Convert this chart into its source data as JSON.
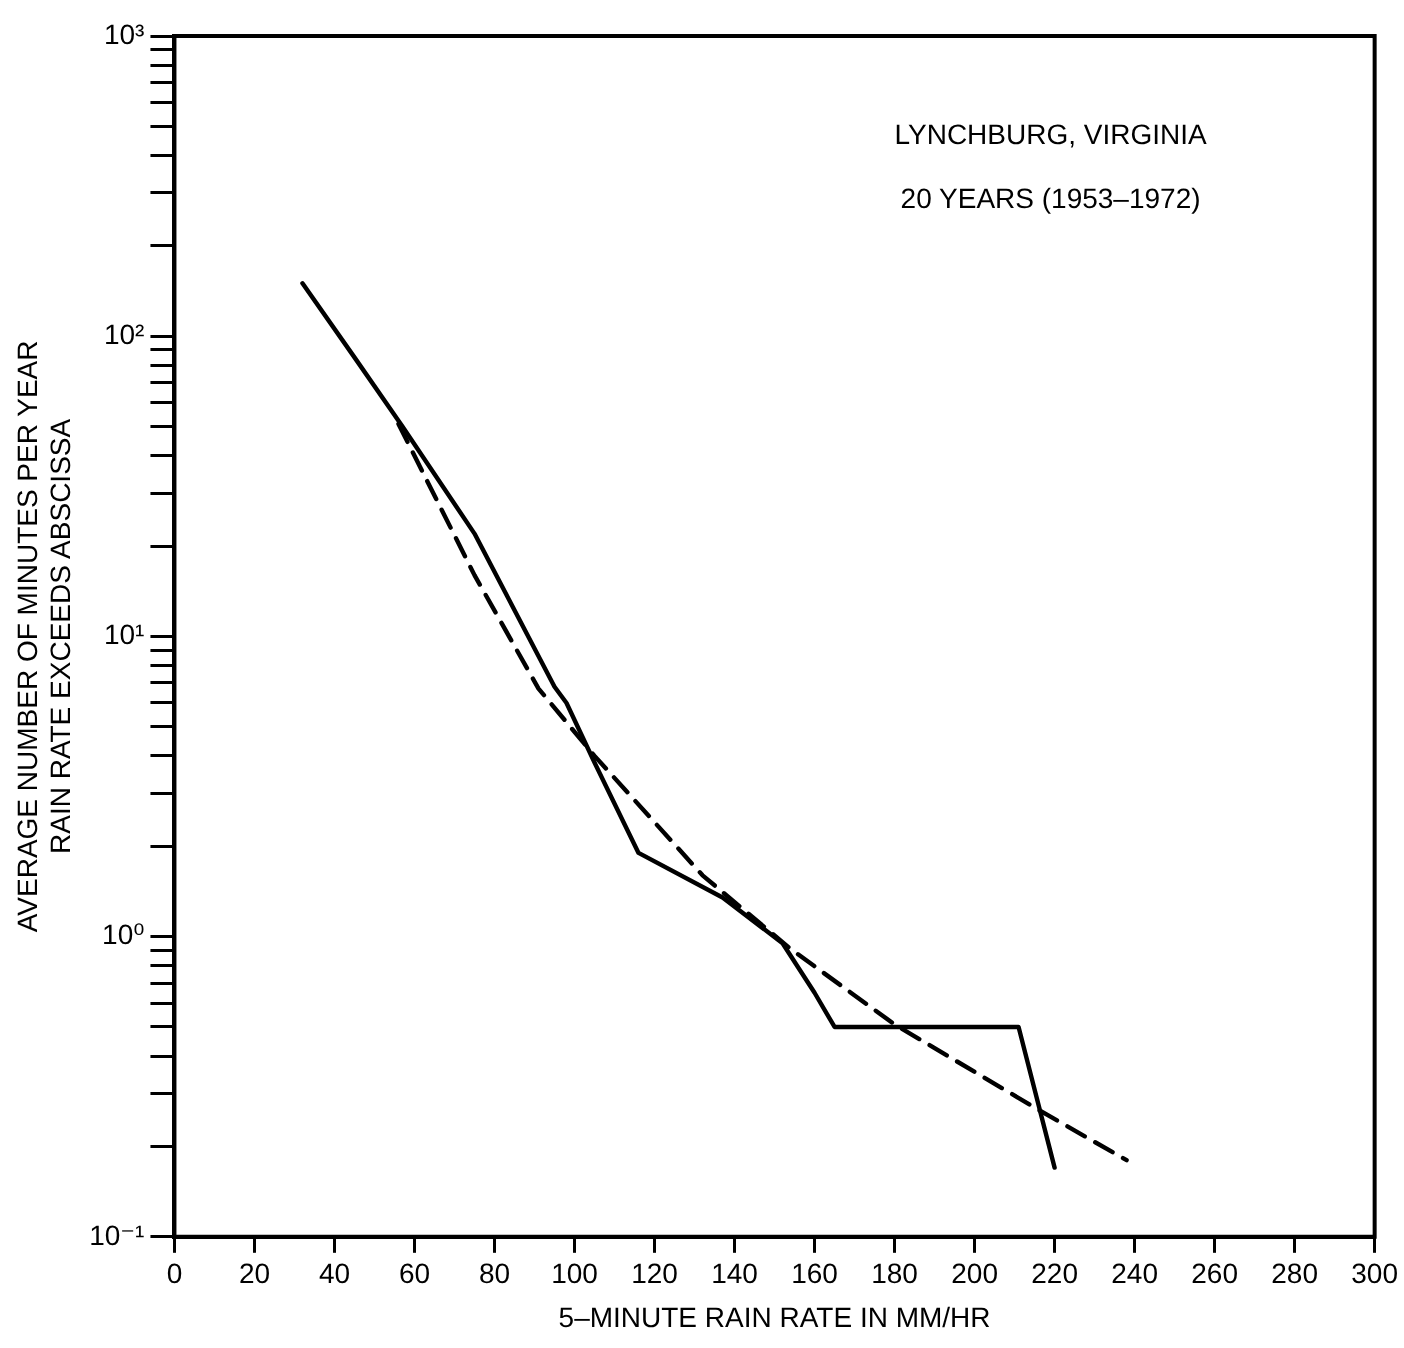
{
  "chart_data": {
    "type": "line",
    "xlabel": "5–MINUTE RAIN RATE IN MM/HR",
    "ylabel": "AVERAGE NUMBER OF MINUTES PER YEAR\nRAIN RATE EXCEEDS ABSCISSA",
    "annotations": [
      "LYNCHBURG, VIRGINIA",
      "20 YEARS (1953–1972)"
    ],
    "log": "y",
    "grid": false,
    "legend": false,
    "marker": "none",
    "xlim": [
      0,
      300
    ],
    "xticks": [
      0,
      20,
      40,
      60,
      80,
      100,
      120,
      140,
      160,
      180,
      200,
      220,
      240,
      260,
      280,
      300
    ],
    "ylim": [
      0.1,
      1000
    ],
    "yticks": [
      {
        "value": 0.1,
        "label": "10⁻¹"
      },
      {
        "value": 0.2,
        "label": null
      },
      {
        "value": 0.3,
        "label": null
      },
      {
        "value": 0.4,
        "label": null
      },
      {
        "value": 0.5,
        "label": null
      },
      {
        "value": 0.6,
        "label": null
      },
      {
        "value": 0.7,
        "label": null
      },
      {
        "value": 0.8,
        "label": null
      },
      {
        "value": 0.9,
        "label": null
      },
      {
        "value": 1,
        "label": "10⁰"
      },
      {
        "value": 2,
        "label": null
      },
      {
        "value": 3,
        "label": null
      },
      {
        "value": 4,
        "label": null
      },
      {
        "value": 5,
        "label": null
      },
      {
        "value": 6,
        "label": null
      },
      {
        "value": 7,
        "label": null
      },
      {
        "value": 8,
        "label": null
      },
      {
        "value": 9,
        "label": null
      },
      {
        "value": 10,
        "label": "10¹"
      },
      {
        "value": 20,
        "label": null
      },
      {
        "value": 30,
        "label": null
      },
      {
        "value": 40,
        "label": null
      },
      {
        "value": 50,
        "label": null
      },
      {
        "value": 60,
        "label": null
      },
      {
        "value": 70,
        "label": null
      },
      {
        "value": 80,
        "label": null
      },
      {
        "value": 90,
        "label": null
      },
      {
        "value": 100,
        "label": "10²"
      },
      {
        "value": 200,
        "label": null
      },
      {
        "value": 300,
        "label": null
      },
      {
        "value": 400,
        "label": null
      },
      {
        "value": 500,
        "label": null
      },
      {
        "value": 600,
        "label": null
      },
      {
        "value": 700,
        "label": null
      },
      {
        "value": 800,
        "label": null
      },
      {
        "value": 900,
        "label": null
      },
      {
        "value": 1000,
        "label": "10³"
      }
    ],
    "series": [
      {
        "color": "#000000",
        "line_style": "solid",
        "x": [
          32,
          45,
          57,
          75,
          95,
          98,
          105,
          116,
          137,
          152,
          160,
          165,
          211,
          220
        ],
        "values": [
          150,
          85,
          50,
          22,
          6.8,
          6,
          3.8,
          1.9,
          1.35,
          0.95,
          0.65,
          0.5,
          0.5,
          0.17
        ]
      },
      {
        "color": "#000000",
        "line_style": "dashed",
        "x": [
          56,
          75,
          91,
          105,
          132,
          154,
          180,
          217,
          238
        ],
        "values": [
          51,
          16,
          6.7,
          4,
          1.6,
          0.91,
          0.51,
          0.26,
          0.18
        ]
      }
    ]
  }
}
